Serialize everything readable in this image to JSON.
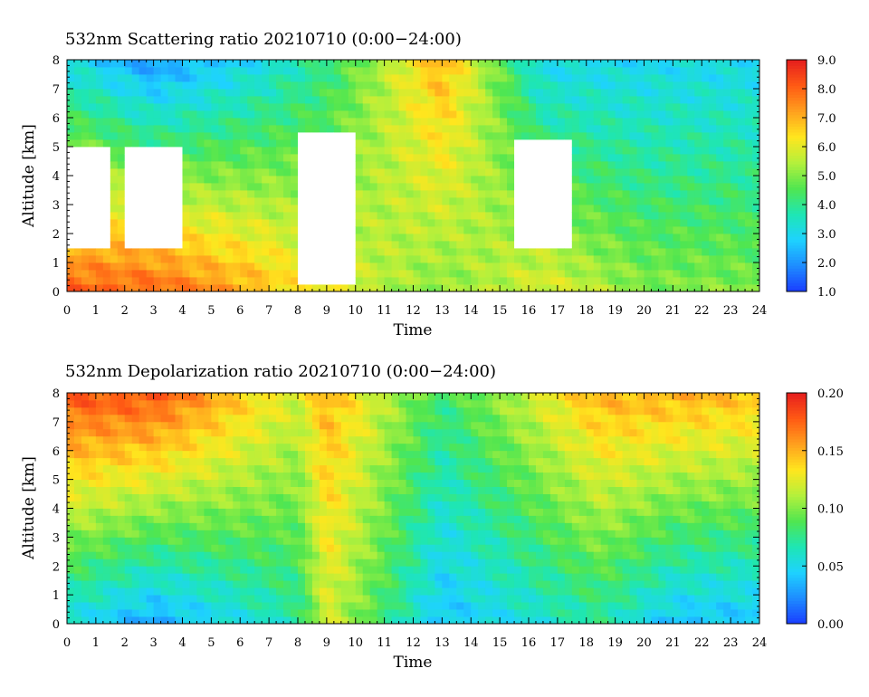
{
  "chart_data": [
    {
      "type": "heatmap",
      "title": "532nm Scattering ratio  20210710 (0:00−24:00)",
      "xlabel": "Time",
      "ylabel": "Altitude [km]",
      "xlim": [
        0,
        24
      ],
      "ylim": [
        0,
        8
      ],
      "x_ticks": [
        "0",
        "1",
        "2",
        "3",
        "4",
        "5",
        "6",
        "7",
        "8",
        "9",
        "10",
        "11",
        "12",
        "13",
        "14",
        "15",
        "16",
        "17",
        "18",
        "19",
        "20",
        "21",
        "22",
        "23",
        "24"
      ],
      "y_ticks": [
        "0",
        "1",
        "2",
        "3",
        "4",
        "5",
        "6",
        "7",
        "8"
      ],
      "colorbar": {
        "min": 1.0,
        "max": 9.0,
        "ticks": [
          "1.0",
          "2.0",
          "3.0",
          "4.0",
          "5.0",
          "6.0",
          "7.0",
          "8.0",
          "9.0"
        ]
      },
      "colormap": [
        "#1a3cff",
        "#1e8cff",
        "#1ed2ff",
        "#1ee6b4",
        "#50e650",
        "#b4f03c",
        "#ffe61e",
        "#ffa01e",
        "#ff5a14",
        "#e61e1e"
      ],
      "no_data_color": "#ffffff",
      "profile_summary": [
        {
          "time": 0.5,
          "value_low": 8.0,
          "value_high": 3.0,
          "cloud_base_km": 1.5,
          "cloud_top_km": 5.0
        },
        {
          "time": 3.0,
          "value_low": 8.0,
          "value_high": 2.0,
          "cloud_base_km": 1.5,
          "cloud_top_km": 5.0
        },
        {
          "time": 6.5,
          "value_low": 7.0,
          "value_high": 3.0
        },
        {
          "time": 9.0,
          "value_low": 6.0,
          "value_high": 4.0,
          "cloud_base_km": 0.2,
          "cloud_top_km": 5.5
        },
        {
          "time": 13.0,
          "value_low": 5.0,
          "value_high": 7.0
        },
        {
          "time": 16.5,
          "value_low": 6.0,
          "value_high": 3.0,
          "cloud_base_km": 1.5,
          "cloud_top_km": 5.3
        },
        {
          "time": 20.0,
          "value_low": 5.0,
          "value_high": 3.0
        },
        {
          "time": 23.0,
          "value_low": 5.0,
          "value_high": 3.0
        }
      ]
    },
    {
      "type": "heatmap",
      "title": "532nm Depolarization ratio  20210710 (0:00−24:00)",
      "xlabel": "Time",
      "ylabel": "Altitude [km]",
      "xlim": [
        0,
        24
      ],
      "ylim": [
        0,
        8
      ],
      "x_ticks": [
        "0",
        "1",
        "2",
        "3",
        "4",
        "5",
        "6",
        "7",
        "8",
        "9",
        "10",
        "11",
        "12",
        "13",
        "14",
        "15",
        "16",
        "17",
        "18",
        "19",
        "20",
        "21",
        "22",
        "23",
        "24"
      ],
      "y_ticks": [
        "0",
        "1",
        "2",
        "3",
        "4",
        "5",
        "6",
        "7",
        "8"
      ],
      "colorbar": {
        "min": 0.0,
        "max": 0.2,
        "ticks": [
          "0.00",
          "0.05",
          "0.10",
          "0.15",
          "0.20"
        ]
      },
      "colormap": [
        "#1a3cff",
        "#1e8cff",
        "#1ed2ff",
        "#1ee6b4",
        "#50e650",
        "#b4f03c",
        "#ffe61e",
        "#ffa01e",
        "#ff5a14",
        "#e61e1e"
      ],
      "no_data_color": "#ffffff",
      "profile_summary": [
        {
          "time": 0.5,
          "value_low": 0.05,
          "value_high": 0.18
        },
        {
          "time": 3.0,
          "value_low": 0.03,
          "value_high": 0.18
        },
        {
          "time": 8.0,
          "value_low": 0.07,
          "value_high": 0.12
        },
        {
          "time": 9.0,
          "value_low": 0.12,
          "value_high": 0.15
        },
        {
          "time": 13.0,
          "value_low": 0.04,
          "value_high": 0.08
        },
        {
          "time": 18.5,
          "value_low": 0.07,
          "value_high": 0.15
        },
        {
          "time": 21.0,
          "value_low": 0.04,
          "value_high": 0.15
        }
      ]
    }
  ]
}
